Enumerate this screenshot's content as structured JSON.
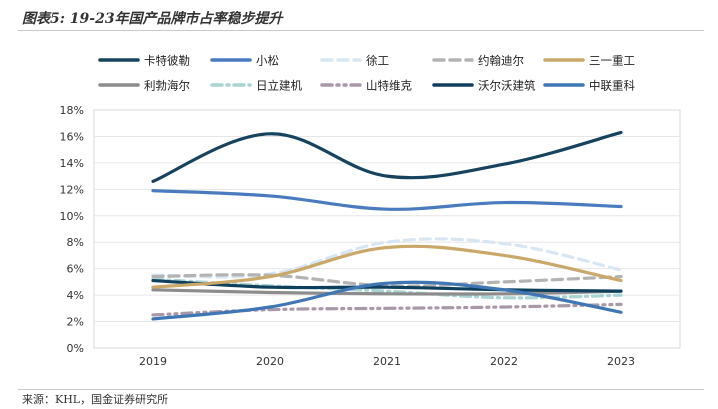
{
  "title": "图表5: 19-23年国产品牌市占率稳步提升",
  "source": "来源：KHL，国金证券研究所",
  "chart_data": {
    "type": "line",
    "categories": [
      "2019",
      "2020",
      "2021",
      "2022",
      "2023"
    ],
    "ylim": [
      0,
      18
    ],
    "yticks": [
      "0%",
      "2%",
      "4%",
      "6%",
      "8%",
      "10%",
      "12%",
      "14%",
      "16%",
      "18%"
    ],
    "unit": "%",
    "grid": true,
    "legend_position": "top",
    "series": [
      {
        "name": "卡特彼勒",
        "values": [
          12.6,
          16.2,
          13.0,
          13.9,
          16.3
        ],
        "color": "#17435f",
        "style": "solid"
      },
      {
        "name": "小松",
        "values": [
          11.9,
          11.5,
          10.5,
          11.0,
          10.7
        ],
        "color": "#4a7bbf",
        "style": "solid"
      },
      {
        "name": "徐工",
        "values": [
          5.5,
          5.6,
          8.0,
          7.9,
          5.9
        ],
        "color": "#d8e6f3",
        "style": "dash"
      },
      {
        "name": "约翰迪尔",
        "values": [
          5.4,
          5.5,
          4.7,
          5.0,
          5.4
        ],
        "color": "#b3b3b3",
        "style": "dash"
      },
      {
        "name": "三一重工",
        "values": [
          4.6,
          5.4,
          7.6,
          7.0,
          5.1
        ],
        "color": "#c9a86a",
        "style": "solid"
      },
      {
        "name": "利勃海尔",
        "values": [
          4.4,
          4.2,
          4.1,
          4.1,
          4.3
        ],
        "color": "#8c8c8c",
        "style": "solid"
      },
      {
        "name": "日立建机",
        "values": [
          5.2,
          4.7,
          4.3,
          3.8,
          4.0
        ],
        "color": "#a9d4d4",
        "style": "dashdot"
      },
      {
        "name": "山特维克",
        "values": [
          2.5,
          2.9,
          3.0,
          3.1,
          3.3
        ],
        "color": "#a898a8",
        "style": "dashdotdot"
      },
      {
        "name": "沃尔沃建筑",
        "values": [
          5.1,
          4.6,
          4.6,
          4.4,
          4.3
        ],
        "color": "#0e3f5c",
        "style": "solid"
      },
      {
        "name": "中联重科",
        "values": [
          2.2,
          3.1,
          4.9,
          4.4,
          2.7
        ],
        "color": "#3f77b5",
        "style": "solid"
      }
    ]
  }
}
